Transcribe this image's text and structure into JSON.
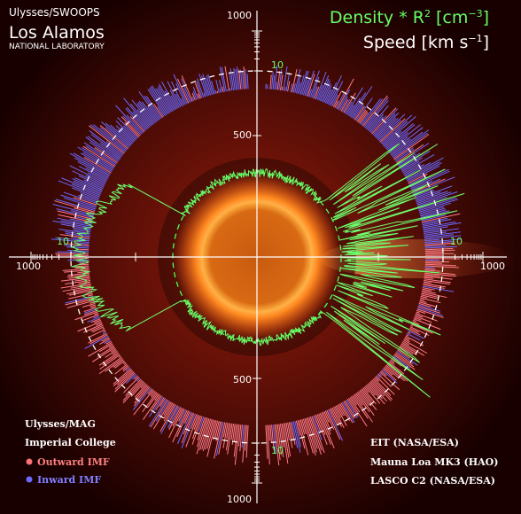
{
  "header": {
    "instrument": "Ulysses/SWOOPS",
    "lab": "Los Alamos",
    "lab_sub": "NATIONAL LABORATORY"
  },
  "legend_top": {
    "density": [
      "Density * R",
      "2",
      " [cm",
      "−3",
      "]"
    ],
    "speed": [
      "Speed [km s",
      "−1",
      "]"
    ]
  },
  "axis_labels": {
    "top": "1000",
    "top_mid": "500",
    "left": "1000",
    "right": "1000",
    "bottom_mid": "500",
    "bottom": "1000",
    "ten_top": "10",
    "ten_left": "10",
    "ten_right": "10",
    "ten_bottom": "10"
  },
  "legend_left": {
    "title": "Ulysses/MAG",
    "org": "Imperial College",
    "outward": "Outward IMF",
    "inward": "Inward IMF"
  },
  "credits": [
    "EIT (NASA/ESA)",
    "Mauna Loa MK3 (HAO)",
    "LASCO C2 (NASA/ESA)"
  ]
}
